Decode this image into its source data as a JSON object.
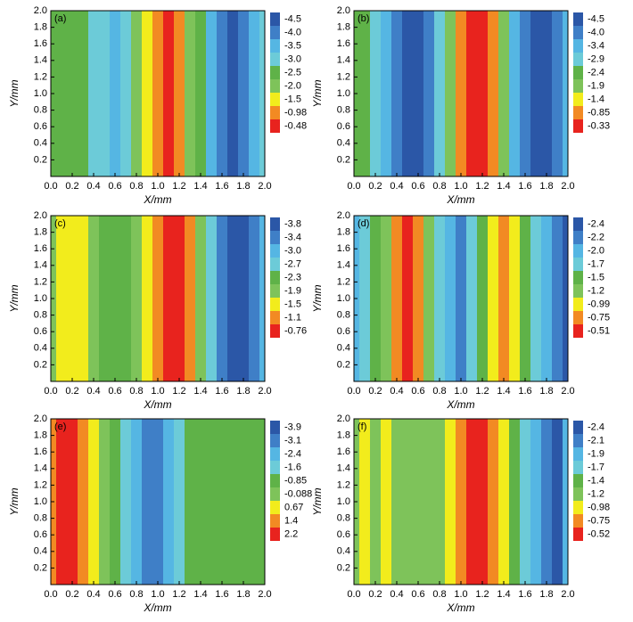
{
  "chart_data": [
    {
      "type": "contour",
      "label": "(a)",
      "xlabel": "X/mm",
      "ylabel": "Y/mm",
      "x": [
        0,
        0.1,
        0.2,
        0.3,
        0.4,
        0.5,
        0.6,
        0.7,
        0.8,
        0.9,
        1.0,
        1.1,
        1.2,
        1.3,
        1.4,
        1.5,
        1.6,
        1.7,
        1.8,
        1.9,
        2.0
      ],
      "values": [
        -2.5,
        -2.5,
        -2.5,
        -2.5,
        -3.0,
        -3.0,
        -3.5,
        -3.0,
        -2.0,
        -1.5,
        -0.98,
        -0.48,
        -0.98,
        -2.0,
        -2.5,
        -3.5,
        -4.0,
        -4.5,
        -4.0,
        -3.5,
        -3.0
      ],
      "levels": [
        -4.5,
        {
          "value": -4,
          "label": "-4.0"
        },
        -3.5,
        {
          "value": -3,
          "label": "-3.0"
        },
        -2.5,
        {
          "value": -2,
          "label": "-2.0"
        },
        -1.5,
        -0.98,
        -0.48
      ],
      "colors": [
        "#2b57a7",
        "#3f7fc7",
        "#55b6e3",
        "#6ccbd8",
        "#5fb248",
        "#7ec35a",
        "#f2ec1c",
        "#f28a23",
        "#e8231e"
      ],
      "xlim": [
        0,
        2
      ],
      "ylim": [
        0,
        2
      ],
      "xticks": [
        {
          "value": 0,
          "label": "0.0"
        },
        0.2,
        0.4,
        0.6,
        0.8,
        {
          "value": 1,
          "label": "1.0"
        },
        1.2,
        1.4,
        1.6,
        1.8,
        {
          "value": 2,
          "label": "2.0"
        }
      ],
      "yticks": [
        0.2,
        0.4,
        0.6,
        0.8,
        {
          "value": 1,
          "label": "1.0"
        },
        1.2,
        1.4,
        1.6,
        1.8,
        {
          "value": 2,
          "label": "2.0"
        }
      ]
    },
    {
      "type": "contour",
      "label": "(b)",
      "xlabel": "X/mm",
      "ylabel": "Y/mm",
      "x": [
        0,
        0.1,
        0.2,
        0.3,
        0.4,
        0.5,
        0.6,
        0.7,
        0.8,
        0.9,
        1.0,
        1.1,
        1.2,
        1.3,
        1.4,
        1.5,
        1.6,
        1.7,
        1.8,
        1.9,
        2.0
      ],
      "values": [
        -2.4,
        -2.4,
        -2.9,
        -3.4,
        -4.0,
        -4.5,
        -4.5,
        -4.0,
        -2.9,
        -1.9,
        -0.85,
        -0.33,
        -0.33,
        -0.85,
        -1.9,
        -3.4,
        -4.0,
        -4.5,
        -4.5,
        -4.0,
        -3.4
      ],
      "levels": [
        -4.5,
        {
          "value": -4,
          "label": "-4.0"
        },
        -3.4,
        -2.9,
        -2.4,
        -1.9,
        -1.4,
        -0.85,
        -0.33
      ],
      "colors": [
        "#2b57a7",
        "#3f7fc7",
        "#55b6e3",
        "#6ccbd8",
        "#5fb248",
        "#7ec35a",
        "#f2ec1c",
        "#f28a23",
        "#e8231e"
      ],
      "xlim": [
        0,
        2
      ],
      "ylim": [
        0,
        2
      ],
      "xticks": [
        {
          "value": 0,
          "label": "0.0"
        },
        0.2,
        0.4,
        0.6,
        0.8,
        {
          "value": 1,
          "label": "1.0"
        },
        1.2,
        1.4,
        1.6,
        1.8,
        {
          "value": 2,
          "label": "2.0"
        }
      ],
      "yticks": [
        0.2,
        0.4,
        0.6,
        0.8,
        {
          "value": 1,
          "label": "1.0"
        },
        1.2,
        1.4,
        1.6,
        1.8,
        {
          "value": 2,
          "label": "2.0"
        }
      ]
    },
    {
      "type": "contour",
      "label": "(c)",
      "xlabel": "X/mm",
      "ylabel": "Y/mm",
      "x": [
        0,
        0.1,
        0.2,
        0.3,
        0.4,
        0.5,
        0.6,
        0.7,
        0.8,
        0.9,
        1.0,
        1.1,
        1.2,
        1.3,
        1.4,
        1.5,
        1.6,
        1.7,
        1.8,
        1.9,
        2.0
      ],
      "values": [
        -1.9,
        -1.5,
        -1.5,
        -1.5,
        -1.9,
        -2.3,
        -2.3,
        -2.3,
        -1.9,
        -1.5,
        -1.1,
        -0.76,
        -0.76,
        -1.1,
        -1.9,
        -2.7,
        -3.4,
        -3.8,
        -3.8,
        -3.4,
        -3.0
      ],
      "levels": [
        -3.8,
        -3.4,
        {
          "value": -3,
          "label": "-3.0"
        },
        -2.7,
        -2.3,
        -1.9,
        -1.5,
        -1.1,
        -0.76
      ],
      "colors": [
        "#2b57a7",
        "#3f7fc7",
        "#55b6e3",
        "#6ccbd8",
        "#5fb248",
        "#7ec35a",
        "#f2ec1c",
        "#f28a23",
        "#e8231e"
      ],
      "xlim": [
        0,
        2
      ],
      "ylim": [
        0,
        2
      ],
      "xticks": [
        {
          "value": 0,
          "label": "0.0"
        },
        0.2,
        0.4,
        0.6,
        0.8,
        {
          "value": 1,
          "label": "1.0"
        },
        1.2,
        1.4,
        1.6,
        1.8,
        {
          "value": 2,
          "label": "2.0"
        }
      ],
      "yticks": [
        0.2,
        0.4,
        0.6,
        0.8,
        {
          "value": 1,
          "label": "1.0"
        },
        1.2,
        1.4,
        1.6,
        1.8,
        {
          "value": 2,
          "label": "2.0"
        }
      ]
    },
    {
      "type": "contour",
      "label": "(d)",
      "xlabel": "X/mm",
      "ylabel": "Y/mm",
      "x": [
        0,
        0.1,
        0.2,
        0.3,
        0.4,
        0.5,
        0.6,
        0.7,
        0.8,
        0.9,
        1.0,
        1.1,
        1.2,
        1.3,
        1.4,
        1.5,
        1.6,
        1.7,
        1.8,
        1.9,
        2.0
      ],
      "values": [
        -2.0,
        -1.7,
        -1.5,
        -1.2,
        -0.75,
        -0.51,
        -0.75,
        -1.2,
        -1.7,
        -2.0,
        -2.2,
        -1.7,
        -1.5,
        -0.99,
        -0.75,
        -0.99,
        -1.5,
        -1.7,
        -2.0,
        -2.2,
        -2.4
      ],
      "levels": [
        -2.4,
        -2.2,
        {
          "value": -2,
          "label": "-2.0"
        },
        -1.7,
        -1.5,
        -1.2,
        -0.99,
        -0.75,
        -0.51
      ],
      "colors": [
        "#2b57a7",
        "#3f7fc7",
        "#55b6e3",
        "#6ccbd8",
        "#5fb248",
        "#7ec35a",
        "#f2ec1c",
        "#f28a23",
        "#e8231e"
      ],
      "xlim": [
        0,
        2
      ],
      "ylim": [
        0,
        2
      ],
      "xticks": [
        {
          "value": 0,
          "label": "0.0"
        },
        0.2,
        0.4,
        0.6,
        0.8,
        {
          "value": 1,
          "label": "1.0"
        },
        1.2,
        1.4,
        1.6,
        1.8,
        {
          "value": 2,
          "label": "2.0"
        }
      ],
      "yticks": [
        0.2,
        0.4,
        0.6,
        0.8,
        {
          "value": 1,
          "label": "1.0"
        },
        1.2,
        1.4,
        1.6,
        1.8,
        {
          "value": 2,
          "label": "2.0"
        }
      ]
    },
    {
      "type": "contour",
      "label": "(e)",
      "xlabel": "X/mm",
      "ylabel": "Y/mm",
      "x": [
        0,
        0.1,
        0.2,
        0.3,
        0.4,
        0.5,
        0.6,
        0.7,
        0.8,
        0.9,
        1.0,
        1.1,
        1.2,
        1.3,
        1.4,
        1.5,
        1.6,
        1.7,
        1.8,
        1.9,
        2.0
      ],
      "values": [
        1.4,
        2.2,
        2.2,
        1.4,
        0.67,
        -0.088,
        -0.85,
        -1.6,
        -2.4,
        -3.1,
        -3.1,
        -2.4,
        -1.6,
        -0.85,
        -0.85,
        -0.85,
        -0.85,
        -0.85,
        -0.85,
        -0.85,
        -0.85
      ],
      "levels": [
        -3.9,
        -3.1,
        -2.4,
        -1.6,
        -0.85,
        -0.088,
        0.67,
        1.4,
        2.2
      ],
      "colors": [
        "#2b57a7",
        "#3f7fc7",
        "#55b6e3",
        "#6ccbd8",
        "#5fb248",
        "#7ec35a",
        "#f2ec1c",
        "#f28a23",
        "#e8231e"
      ],
      "xlim": [
        0,
        2
      ],
      "ylim": [
        0,
        2
      ],
      "xticks": [
        {
          "value": 0,
          "label": "0.0"
        },
        0.2,
        0.4,
        0.6,
        0.8,
        {
          "value": 1,
          "label": "1.0"
        },
        1.2,
        1.4,
        1.6,
        1.8,
        {
          "value": 2,
          "label": "2.0"
        }
      ],
      "yticks": [
        0.2,
        0.4,
        0.6,
        0.8,
        {
          "value": 1,
          "label": "1.0"
        },
        1.2,
        1.4,
        1.6,
        1.8,
        {
          "value": 2,
          "label": "2.0"
        }
      ]
    },
    {
      "type": "contour",
      "label": "(f)",
      "xlabel": "X/mm",
      "ylabel": "Y/mm",
      "x": [
        0,
        0.1,
        0.2,
        0.3,
        0.4,
        0.5,
        0.6,
        0.7,
        0.8,
        0.9,
        1.0,
        1.1,
        1.2,
        1.3,
        1.4,
        1.5,
        1.6,
        1.7,
        1.8,
        1.9,
        2.0
      ],
      "values": [
        -1.2,
        -0.98,
        -1.2,
        -0.98,
        -1.2,
        -1.2,
        -1.2,
        -1.2,
        -1.2,
        -0.98,
        -0.75,
        -0.52,
        -0.52,
        -0.75,
        -0.98,
        -1.4,
        -1.7,
        -1.9,
        -2.1,
        -2.4,
        -1.9
      ],
      "levels": [
        -2.4,
        -2.1,
        -1.9,
        -1.7,
        -1.4,
        -1.2,
        -0.98,
        -0.75,
        -0.52
      ],
      "colors": [
        "#2b57a7",
        "#3f7fc7",
        "#55b6e3",
        "#6ccbd8",
        "#5fb248",
        "#7ec35a",
        "#f2ec1c",
        "#f28a23",
        "#e8231e"
      ],
      "xlim": [
        0,
        2
      ],
      "ylim": [
        0,
        2
      ],
      "xticks": [
        {
          "value": 0,
          "label": "0.0"
        },
        0.2,
        0.4,
        0.6,
        0.8,
        {
          "value": 1,
          "label": "1.0"
        },
        1.2,
        1.4,
        1.6,
        1.8,
        {
          "value": 2,
          "label": "2.0"
        }
      ],
      "yticks": [
        0.2,
        0.4,
        0.6,
        0.8,
        {
          "value": 1,
          "label": "1.0"
        },
        1.2,
        1.4,
        1.6,
        1.8,
        {
          "value": 2,
          "label": "2.0"
        }
      ]
    }
  ]
}
